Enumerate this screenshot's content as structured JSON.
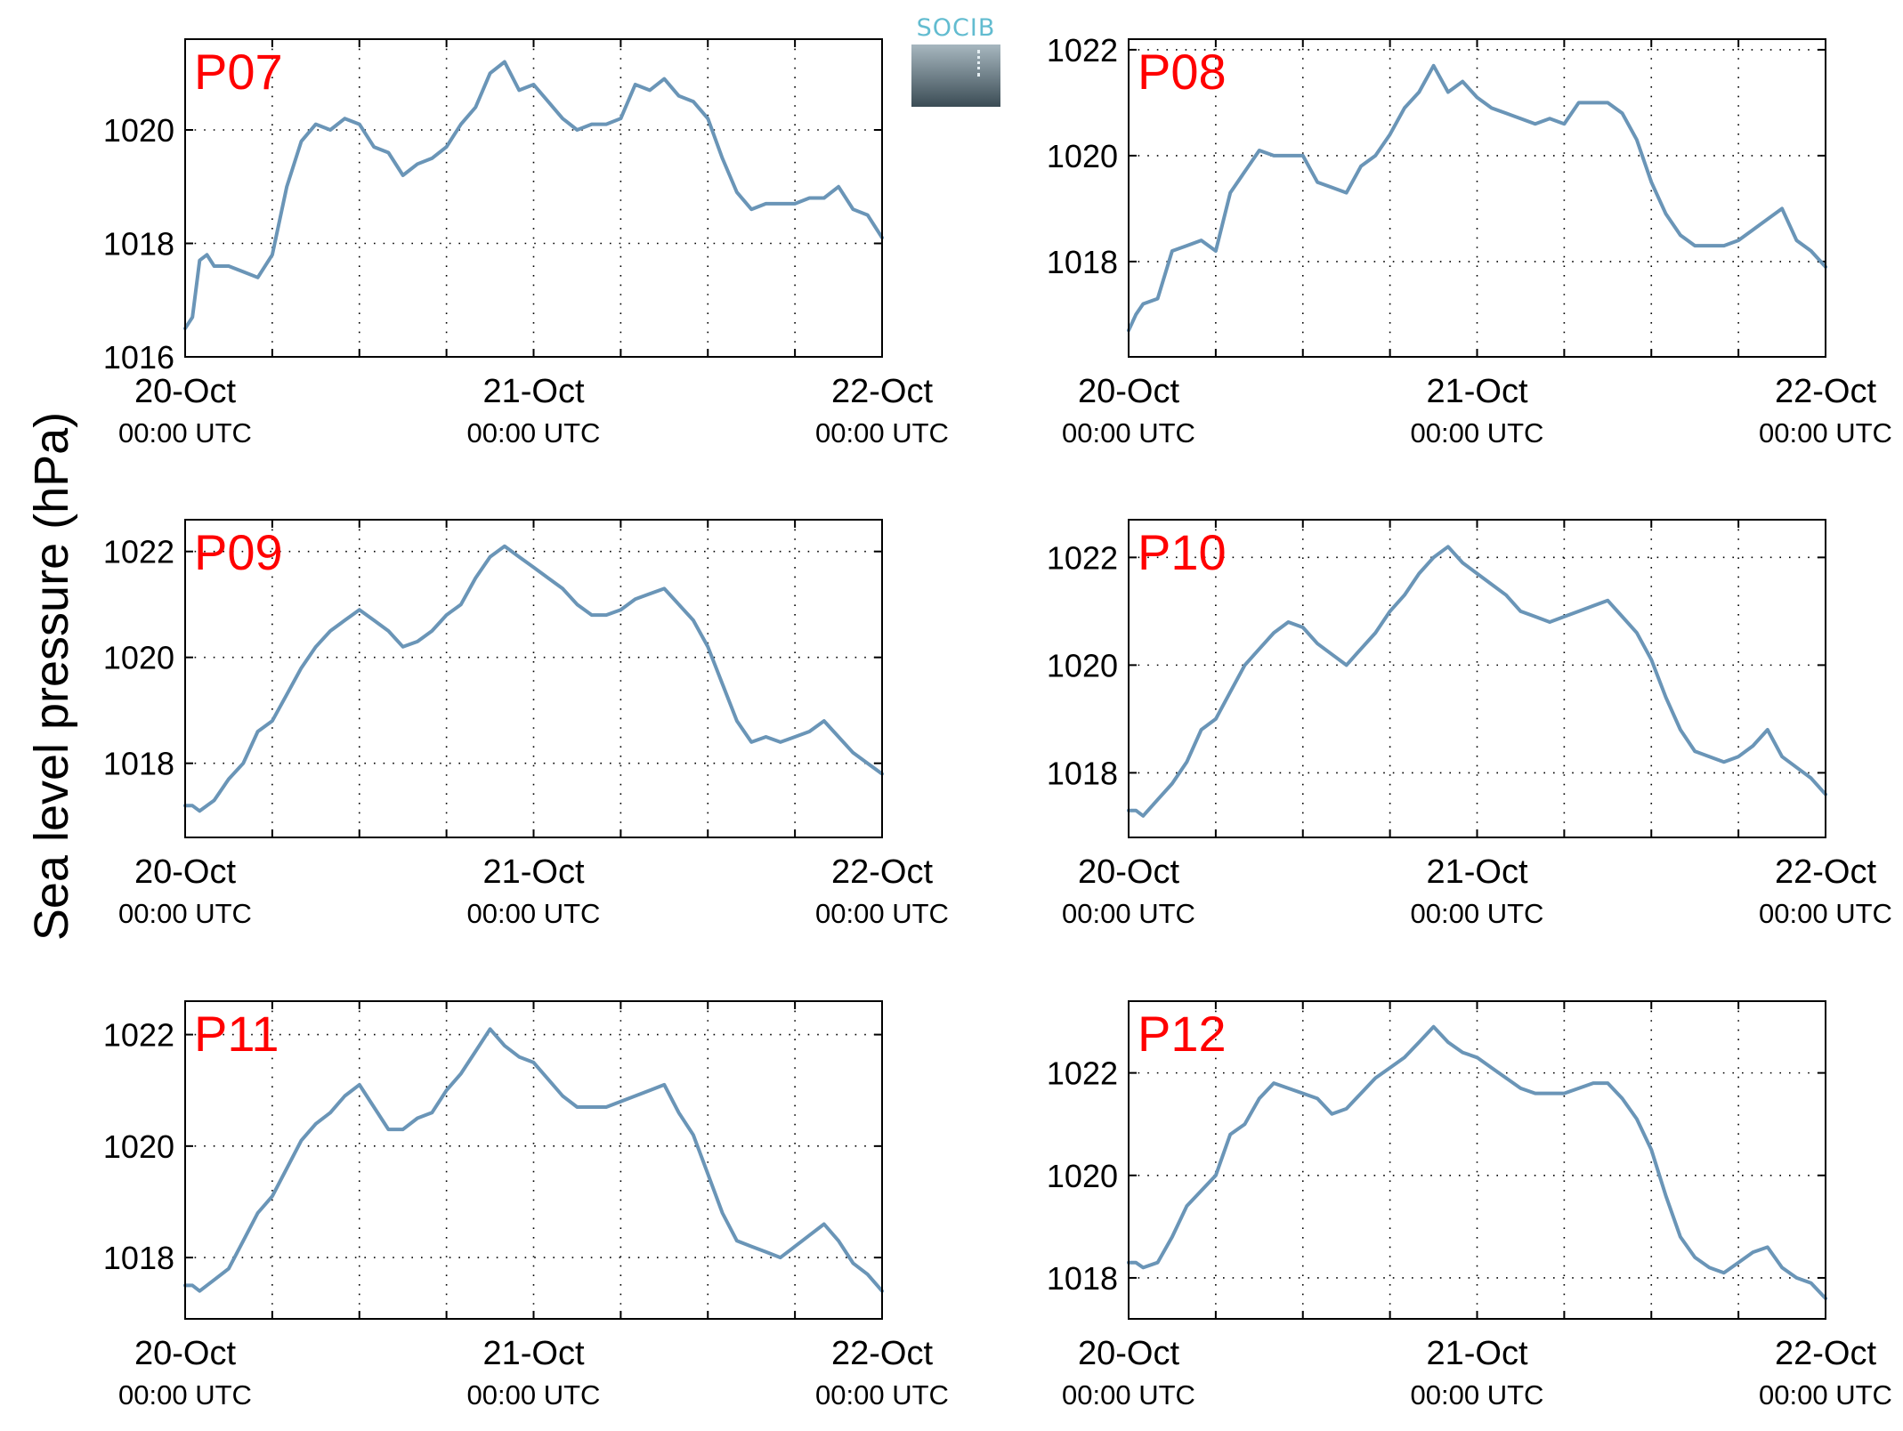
{
  "ylabel": "Sea level pressure (hPa)",
  "logo_text": "SOCIB",
  "colors": {
    "line": "#6a95b7",
    "station_label": "#ff0000",
    "axes": "#000000"
  },
  "x_ticks": [
    {
      "day": "20-Oct",
      "time": "00:00 UTC",
      "hours": 0
    },
    {
      "day": "21-Oct",
      "time": "00:00 UTC",
      "hours": 24
    },
    {
      "day": "22-Oct",
      "time": "00:00 UTC",
      "hours": 48
    }
  ],
  "chart_data": [
    {
      "type": "line",
      "station": "P07",
      "xlim_hours": [
        0,
        48
      ],
      "ylim": [
        1016,
        1021.6
      ],
      "yticks": [
        1016,
        1018,
        1020
      ],
      "grid": true,
      "x_hours": [
        0,
        0.5,
        1,
        1.5,
        2,
        3,
        4,
        5,
        6,
        7,
        8,
        9,
        10,
        11,
        12,
        13,
        14,
        15,
        16,
        17,
        18,
        19,
        20,
        21,
        22,
        23,
        24,
        25,
        26,
        27,
        28,
        29,
        30,
        31,
        32,
        33,
        34,
        35,
        36,
        37,
        38,
        39,
        40,
        41,
        42,
        43,
        44,
        45,
        46,
        47,
        48
      ],
      "values": [
        1016.5,
        1016.7,
        1017.7,
        1017.8,
        1017.6,
        1017.6,
        1017.5,
        1017.4,
        1017.8,
        1019.0,
        1019.8,
        1020.1,
        1020.0,
        1020.2,
        1020.1,
        1019.7,
        1019.6,
        1019.2,
        1019.4,
        1019.5,
        1019.7,
        1020.1,
        1020.4,
        1021.0,
        1021.2,
        1020.7,
        1020.8,
        1020.5,
        1020.2,
        1020.0,
        1020.1,
        1020.1,
        1020.2,
        1020.8,
        1020.7,
        1020.9,
        1020.6,
        1020.5,
        1020.2,
        1019.5,
        1018.9,
        1018.6,
        1018.7,
        1018.7,
        1018.7,
        1018.8,
        1018.8,
        1019.0,
        1018.6,
        1018.5,
        1018.1
      ]
    },
    {
      "type": "line",
      "station": "P08",
      "xlim_hours": [
        0,
        48
      ],
      "ylim": [
        1016.2,
        1022.2
      ],
      "yticks": [
        1018,
        1020,
        1022
      ],
      "grid": true,
      "x_hours": [
        0,
        0.5,
        1,
        2,
        3,
        4,
        5,
        6,
        7,
        8,
        9,
        10,
        11,
        12,
        13,
        14,
        15,
        16,
        17,
        18,
        19,
        20,
        21,
        22,
        23,
        24,
        25,
        26,
        27,
        28,
        29,
        30,
        31,
        32,
        33,
        34,
        35,
        36,
        37,
        38,
        39,
        40,
        41,
        42,
        43,
        44,
        45,
        46,
        47,
        48
      ],
      "values": [
        1016.7,
        1017.0,
        1017.2,
        1017.3,
        1018.2,
        1018.3,
        1018.4,
        1018.2,
        1019.3,
        1019.7,
        1020.1,
        1020.0,
        1020.0,
        1020.0,
        1019.5,
        1019.4,
        1019.3,
        1019.8,
        1020.0,
        1020.4,
        1020.9,
        1021.2,
        1021.7,
        1021.2,
        1021.4,
        1021.1,
        1020.9,
        1020.8,
        1020.7,
        1020.6,
        1020.7,
        1020.6,
        1021.0,
        1021.0,
        1021.0,
        1020.8,
        1020.3,
        1019.5,
        1018.9,
        1018.5,
        1018.3,
        1018.3,
        1018.3,
        1018.4,
        1018.6,
        1018.8,
        1019.0,
        1018.4,
        1018.2,
        1017.9
      ]
    },
    {
      "type": "line",
      "station": "P09",
      "xlim_hours": [
        0,
        48
      ],
      "ylim": [
        1016.6,
        1022.6
      ],
      "yticks": [
        1018,
        1020,
        1022
      ],
      "grid": true,
      "x_hours": [
        0,
        0.5,
        1,
        2,
        3,
        4,
        5,
        6,
        7,
        8,
        9,
        10,
        11,
        12,
        13,
        14,
        15,
        16,
        17,
        18,
        19,
        20,
        21,
        22,
        23,
        24,
        25,
        26,
        27,
        28,
        29,
        30,
        31,
        32,
        33,
        34,
        35,
        36,
        37,
        38,
        39,
        40,
        41,
        42,
        43,
        44,
        45,
        46,
        47,
        48
      ],
      "values": [
        1017.2,
        1017.2,
        1017.1,
        1017.3,
        1017.7,
        1018.0,
        1018.6,
        1018.8,
        1019.3,
        1019.8,
        1020.2,
        1020.5,
        1020.7,
        1020.9,
        1020.7,
        1020.5,
        1020.2,
        1020.3,
        1020.5,
        1020.8,
        1021.0,
        1021.5,
        1021.9,
        1022.1,
        1021.9,
        1021.7,
        1021.5,
        1021.3,
        1021.0,
        1020.8,
        1020.8,
        1020.9,
        1021.1,
        1021.2,
        1021.3,
        1021.0,
        1020.7,
        1020.2,
        1019.5,
        1018.8,
        1018.4,
        1018.5,
        1018.4,
        1018.5,
        1018.6,
        1018.8,
        1018.5,
        1018.2,
        1018.0,
        1017.8
      ]
    },
    {
      "type": "line",
      "station": "P10",
      "xlim_hours": [
        0,
        48
      ],
      "ylim": [
        1016.8,
        1022.7
      ],
      "yticks": [
        1018,
        1020,
        1022
      ],
      "grid": true,
      "x_hours": [
        0,
        0.5,
        1,
        2,
        3,
        4,
        5,
        6,
        7,
        8,
        9,
        10,
        11,
        12,
        13,
        14,
        15,
        16,
        17,
        18,
        19,
        20,
        21,
        22,
        23,
        24,
        25,
        26,
        27,
        28,
        29,
        30,
        31,
        32,
        33,
        34,
        35,
        36,
        37,
        38,
        39,
        40,
        41,
        42,
        43,
        44,
        45,
        46,
        47,
        48
      ],
      "values": [
        1017.3,
        1017.3,
        1017.2,
        1017.5,
        1017.8,
        1018.2,
        1018.8,
        1019.0,
        1019.5,
        1020.0,
        1020.3,
        1020.6,
        1020.8,
        1020.7,
        1020.4,
        1020.2,
        1020.0,
        1020.3,
        1020.6,
        1021.0,
        1021.3,
        1021.7,
        1022.0,
        1022.2,
        1021.9,
        1021.7,
        1021.5,
        1021.3,
        1021.0,
        1020.9,
        1020.8,
        1020.9,
        1021.0,
        1021.1,
        1021.2,
        1020.9,
        1020.6,
        1020.1,
        1019.4,
        1018.8,
        1018.4,
        1018.3,
        1018.2,
        1018.3,
        1018.5,
        1018.8,
        1018.3,
        1018.1,
        1017.9,
        1017.6
      ]
    },
    {
      "type": "line",
      "station": "P11",
      "xlim_hours": [
        0,
        48
      ],
      "ylim": [
        1016.9,
        1022.6
      ],
      "yticks": [
        1018,
        1020,
        1022
      ],
      "grid": true,
      "x_hours": [
        0,
        0.5,
        1,
        2,
        3,
        4,
        5,
        6,
        7,
        8,
        9,
        10,
        11,
        12,
        13,
        14,
        15,
        16,
        17,
        18,
        19,
        20,
        21,
        22,
        23,
        24,
        25,
        26,
        27,
        28,
        29,
        30,
        31,
        32,
        33,
        34,
        35,
        36,
        37,
        38,
        39,
        40,
        41,
        42,
        43,
        44,
        45,
        46,
        47,
        48
      ],
      "values": [
        1017.5,
        1017.5,
        1017.4,
        1017.6,
        1017.8,
        1018.3,
        1018.8,
        1019.1,
        1019.6,
        1020.1,
        1020.4,
        1020.6,
        1020.9,
        1021.1,
        1020.7,
        1020.3,
        1020.3,
        1020.5,
        1020.6,
        1021.0,
        1021.3,
        1021.7,
        1022.1,
        1021.8,
        1021.6,
        1021.5,
        1021.2,
        1020.9,
        1020.7,
        1020.7,
        1020.7,
        1020.8,
        1020.9,
        1021.0,
        1021.1,
        1020.6,
        1020.2,
        1019.5,
        1018.8,
        1018.3,
        1018.2,
        1018.1,
        1018.0,
        1018.2,
        1018.4,
        1018.6,
        1018.3,
        1017.9,
        1017.7,
        1017.4
      ]
    },
    {
      "type": "line",
      "station": "P12",
      "xlim_hours": [
        0,
        48
      ],
      "ylim": [
        1017.2,
        1023.4
      ],
      "yticks": [
        1018,
        1020,
        1022
      ],
      "grid": true,
      "x_hours": [
        0,
        0.5,
        1,
        2,
        3,
        4,
        5,
        6,
        7,
        8,
        9,
        10,
        11,
        12,
        13,
        14,
        15,
        16,
        17,
        18,
        19,
        20,
        21,
        22,
        23,
        24,
        25,
        26,
        27,
        28,
        29,
        30,
        31,
        32,
        33,
        34,
        35,
        36,
        37,
        38,
        39,
        40,
        41,
        42,
        43,
        44,
        45,
        46,
        47,
        48
      ],
      "values": [
        1018.3,
        1018.3,
        1018.2,
        1018.3,
        1018.8,
        1019.4,
        1019.7,
        1020.0,
        1020.8,
        1021.0,
        1021.5,
        1021.8,
        1021.7,
        1021.6,
        1021.5,
        1021.2,
        1021.3,
        1021.6,
        1021.9,
        1022.1,
        1022.3,
        1022.6,
        1022.9,
        1022.6,
        1022.4,
        1022.3,
        1022.1,
        1021.9,
        1021.7,
        1021.6,
        1021.6,
        1021.6,
        1021.7,
        1021.8,
        1021.8,
        1021.5,
        1021.1,
        1020.5,
        1019.6,
        1018.8,
        1018.4,
        1018.2,
        1018.1,
        1018.3,
        1018.5,
        1018.6,
        1018.2,
        1018.0,
        1017.9,
        1017.6
      ]
    }
  ]
}
